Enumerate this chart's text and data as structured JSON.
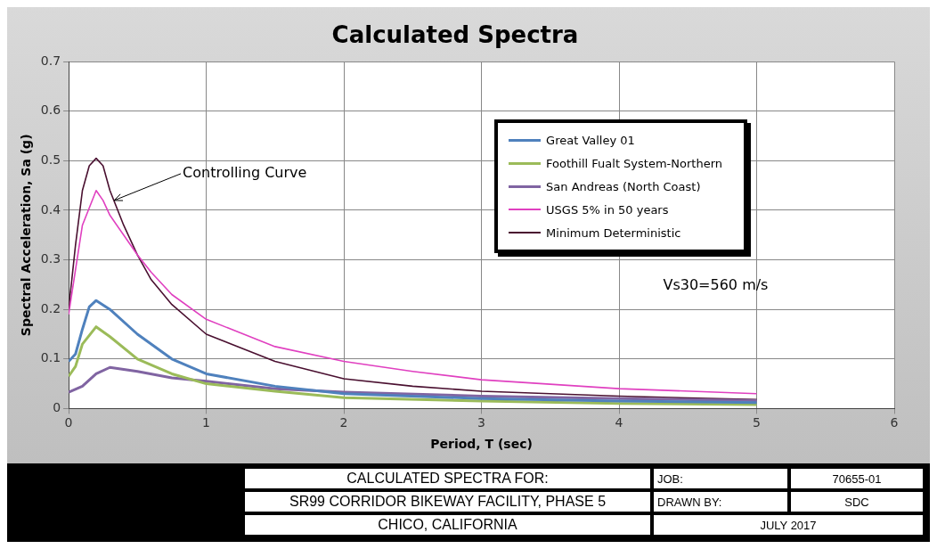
{
  "chart_data": {
    "type": "line",
    "title": "Calculated Spectra",
    "xlabel": "Period, T (sec)",
    "ylabel": "Spectral Acceleration, Sa (g)",
    "xlim": [
      0,
      6
    ],
    "xticks": [
      0,
      1,
      2,
      3,
      4,
      5,
      6
    ],
    "ylim": [
      0,
      0.7
    ],
    "yticks": [
      0,
      0.1,
      0.2,
      0.3,
      0.4,
      0.5,
      0.6,
      0.7
    ],
    "grid": true,
    "legend": "top right",
    "marker": "none",
    "series": [
      {
        "name": "Great Valley 01",
        "color": "#4f81bd",
        "x": [
          0,
          0.05,
          0.1,
          0.15,
          0.2,
          0.3,
          0.5,
          0.75,
          1,
          1.5,
          2,
          3,
          4,
          5
        ],
        "values": [
          0.095,
          0.11,
          0.16,
          0.205,
          0.218,
          0.2,
          0.15,
          0.1,
          0.07,
          0.045,
          0.03,
          0.02,
          0.015,
          0.012
        ]
      },
      {
        "name": "Foothill Fualt System-Northern",
        "color": "#9bbb59",
        "x": [
          0,
          0.05,
          0.1,
          0.2,
          0.3,
          0.5,
          0.75,
          1,
          1.5,
          2,
          3,
          4,
          5
        ],
        "values": [
          0.065,
          0.085,
          0.13,
          0.165,
          0.145,
          0.1,
          0.07,
          0.05,
          0.035,
          0.022,
          0.015,
          0.01,
          0.008
        ]
      },
      {
        "name": "San Andreas (North Coast)",
        "color": "#8064a2",
        "x": [
          0,
          0.1,
          0.2,
          0.3,
          0.5,
          0.75,
          1,
          1.5,
          2,
          3,
          4,
          5
        ],
        "values": [
          0.033,
          0.045,
          0.07,
          0.083,
          0.075,
          0.062,
          0.055,
          0.04,
          0.033,
          0.025,
          0.02,
          0.016
        ]
      },
      {
        "name": "USGS 5% in 50 years",
        "color": "#e040c0",
        "x": [
          0,
          0.05,
          0.1,
          0.2,
          0.25,
          0.3,
          0.4,
          0.5,
          0.6,
          0.75,
          1,
          1.5,
          2,
          2.5,
          3,
          4,
          5
        ],
        "values": [
          0.19,
          0.28,
          0.37,
          0.44,
          0.42,
          0.39,
          0.35,
          0.31,
          0.275,
          0.23,
          0.18,
          0.125,
          0.095,
          0.075,
          0.058,
          0.04,
          0.03
        ]
      },
      {
        "name": "Minimum Deterministic",
        "color": "#4a1030",
        "x": [
          0,
          0.05,
          0.1,
          0.15,
          0.2,
          0.25,
          0.3,
          0.4,
          0.5,
          0.6,
          0.75,
          1,
          1.5,
          2,
          2.5,
          3,
          4,
          5
        ],
        "values": [
          0.2,
          0.33,
          0.44,
          0.49,
          0.505,
          0.49,
          0.44,
          0.37,
          0.31,
          0.26,
          0.21,
          0.15,
          0.095,
          0.06,
          0.045,
          0.035,
          0.025,
          0.018
        ]
      }
    ],
    "annotations": [
      {
        "text": "Controlling Curve",
        "x": 0.33,
        "y": 0.42
      },
      "Vs30=560 m/s",
      "CALCULATED SPECTRA FOR:",
      "SR99 CORRIDOR BIKEWAY FACILITY, PHASE 5",
      "CHICO, CALIFORNIA",
      "JOB:",
      "70655-01",
      "DRAWN BY:",
      "SDC",
      "JULY 2017"
    ]
  }
}
